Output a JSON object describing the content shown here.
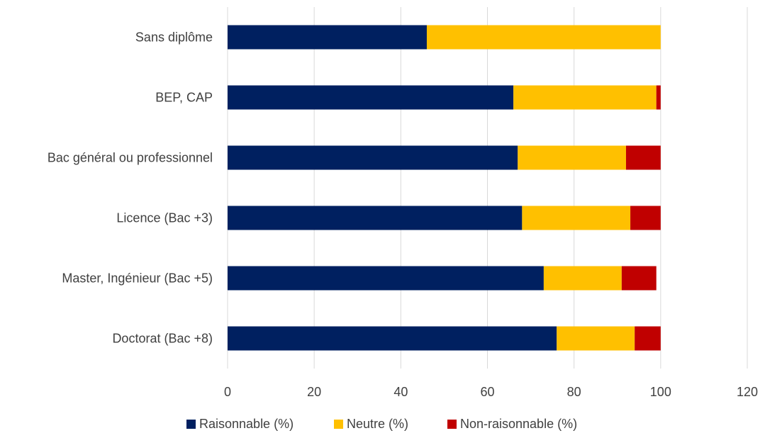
{
  "chart_data": {
    "type": "bar",
    "orientation": "horizontal",
    "stacked": true,
    "categories": [
      "Sans diplôme",
      "BEP, CAP",
      "Bac général ou professionnel",
      "Licence (Bac +3)",
      "Master, Ingénieur (Bac +5)",
      "Doctorat (Bac +8)"
    ],
    "series": [
      {
        "name": "Raisonnable (%)",
        "color": "#002060",
        "values": [
          46,
          66,
          67,
          68,
          73,
          76
        ]
      },
      {
        "name": "Neutre (%)",
        "color": "#FFC000",
        "values": [
          54,
          33,
          25,
          25,
          18,
          18
        ]
      },
      {
        "name": "Non-raisonnable (%)",
        "color": "#C00000",
        "values": [
          0,
          1,
          8,
          7,
          8,
          6
        ]
      }
    ],
    "xlim": [
      0,
      120
    ],
    "xticks": [
      "0",
      "20",
      "40",
      "60",
      "80",
      "100",
      "120"
    ],
    "grid": true,
    "legend_position": "bottom"
  }
}
